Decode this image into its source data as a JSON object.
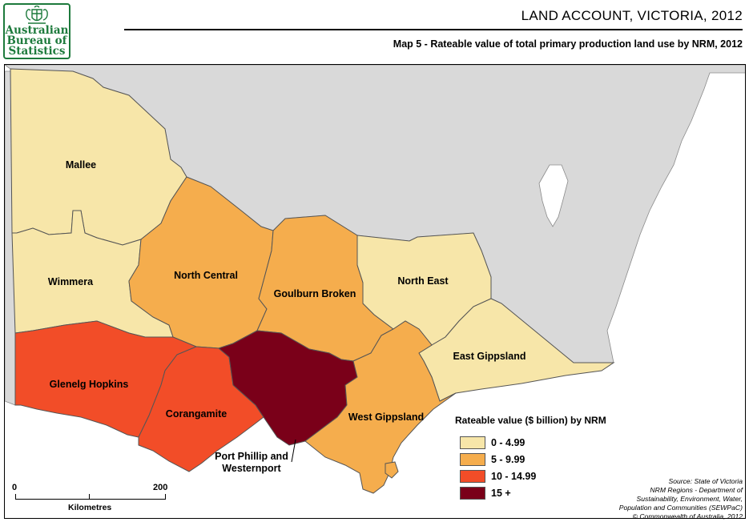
{
  "logo": {
    "lines": [
      "Australian",
      "Bureau of",
      "Statistics"
    ],
    "color": "#1d7a3c",
    "icon": "coat-of-arms-icon"
  },
  "header": {
    "title": "LAND ACCOUNT, VICTORIA, 2012",
    "subtitle": "Map 5 - Rateable value of total primary production land use by NRM, 2012"
  },
  "map": {
    "nsw_color": "#d9d9d9",
    "sea_color": "#ffffff",
    "regions": [
      {
        "name": "Mallee",
        "class": "0 - 4.99"
      },
      {
        "name": "Wimmera",
        "class": "0 - 4.99"
      },
      {
        "name": "North Central",
        "class": "5 - 9.99"
      },
      {
        "name": "Goulburn Broken",
        "class": "5 - 9.99"
      },
      {
        "name": "North East",
        "class": "0 - 4.99"
      },
      {
        "name": "East Gippsland",
        "class": "0 - 4.99"
      },
      {
        "name": "Glenelg Hopkins",
        "class": "10 - 14.99"
      },
      {
        "name": "Corangamite",
        "class": "10 - 14.99"
      },
      {
        "name": "Port Phillip and Westernport",
        "class": "15 +"
      },
      {
        "name": "West Gippsland",
        "class": "5 - 9.99"
      }
    ],
    "port_phillip_label": [
      "Port Phillip and",
      "Westernport"
    ]
  },
  "legend": {
    "title": "Rateable value ($ billion) by NRM",
    "items": [
      {
        "label": "0 - 4.99",
        "color": "#f7e6a9"
      },
      {
        "label": "5 - 9.99",
        "color": "#f5ad4d"
      },
      {
        "label": "10 - 14.99",
        "color": "#f24d28"
      },
      {
        "label": "15 +",
        "color": "#7a0019"
      }
    ]
  },
  "scale": {
    "start": "0",
    "end": "200",
    "unit": "Kilometres"
  },
  "source": [
    "Source: State of Victoria",
    "NRM Regions - Department of",
    "Sustainability, Environment, Water,",
    "Population and Communities (SEWPaC)",
    "© Commonwealth of Australia, 2012"
  ]
}
